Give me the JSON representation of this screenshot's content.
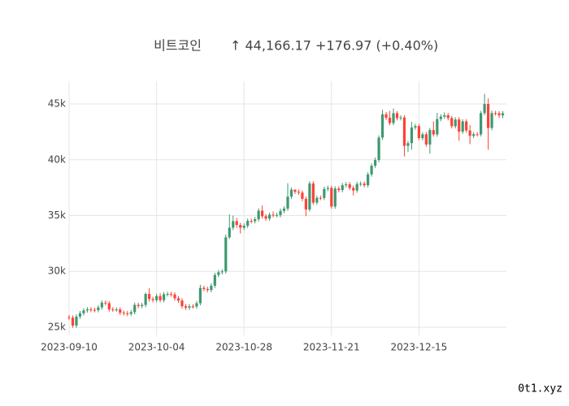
{
  "chart_data": {
    "type": "candlestick",
    "title": "비트코인",
    "price": "↑ 44,166.17",
    "change": "+176.97 (+0.40%)",
    "watermark": "0t1.xyz",
    "increasing_color": "#3d9970",
    "decreasing_color": "#ff4136",
    "grid": true,
    "xlim": [
      "2023-09-10",
      "2024-01-08"
    ],
    "xticks": [
      "2023-09-10",
      "2023-10-04",
      "2023-10-28",
      "2023-11-21",
      "2023-12-15"
    ],
    "ylim": [
      24270,
      47040
    ],
    "yticks": [
      {
        "value": 25000,
        "label": "25k"
      },
      {
        "value": 30000,
        "label": "30k"
      },
      {
        "value": 35000,
        "label": "35k"
      },
      {
        "value": 40000,
        "label": "40k"
      },
      {
        "value": 45000,
        "label": "45k"
      }
    ],
    "x": [
      "2023-09-10",
      "2023-09-11",
      "2023-09-12",
      "2023-09-13",
      "2023-09-14",
      "2023-09-15",
      "2023-09-16",
      "2023-09-17",
      "2023-09-18",
      "2023-09-19",
      "2023-09-20",
      "2023-09-21",
      "2023-09-22",
      "2023-09-23",
      "2023-09-24",
      "2023-09-25",
      "2023-09-26",
      "2023-09-27",
      "2023-09-28",
      "2023-09-29",
      "2023-09-30",
      "2023-10-01",
      "2023-10-02",
      "2023-10-03",
      "2023-10-04",
      "2023-10-05",
      "2023-10-06",
      "2023-10-07",
      "2023-10-08",
      "2023-10-09",
      "2023-10-10",
      "2023-10-11",
      "2023-10-12",
      "2023-10-13",
      "2023-10-14",
      "2023-10-15",
      "2023-10-16",
      "2023-10-17",
      "2023-10-18",
      "2023-10-19",
      "2023-10-20",
      "2023-10-21",
      "2023-10-22",
      "2023-10-23",
      "2023-10-24",
      "2023-10-25",
      "2023-10-26",
      "2023-10-27",
      "2023-10-28",
      "2023-10-29",
      "2023-10-30",
      "2023-10-31",
      "2023-11-01",
      "2023-11-02",
      "2023-11-03",
      "2023-11-04",
      "2023-11-05",
      "2023-11-06",
      "2023-11-07",
      "2023-11-08",
      "2023-11-09",
      "2023-11-10",
      "2023-11-11",
      "2023-11-12",
      "2023-11-13",
      "2023-11-14",
      "2023-11-15",
      "2023-11-16",
      "2023-11-17",
      "2023-11-18",
      "2023-11-19",
      "2023-11-20",
      "2023-11-21",
      "2023-11-22",
      "2023-11-23",
      "2023-11-24",
      "2023-11-25",
      "2023-11-26",
      "2023-11-27",
      "2023-11-28",
      "2023-11-29",
      "2023-11-30",
      "2023-12-01",
      "2023-12-02",
      "2023-12-03",
      "2023-12-04",
      "2023-12-05",
      "2023-12-06",
      "2023-12-07",
      "2023-12-08",
      "2023-12-09",
      "2023-12-10",
      "2023-12-11",
      "2023-12-12",
      "2023-12-13",
      "2023-12-14",
      "2023-12-15",
      "2023-12-16",
      "2023-12-17",
      "2023-12-18",
      "2023-12-19",
      "2023-12-20",
      "2023-12-21",
      "2023-12-22",
      "2023-12-23",
      "2023-12-24",
      "2023-12-25",
      "2023-12-26",
      "2023-12-27",
      "2023-12-28",
      "2023-12-29",
      "2023-12-30",
      "2023-12-31",
      "2024-01-01",
      "2024-01-02",
      "2024-01-03",
      "2024-01-04",
      "2024-01-05",
      "2024-01-06",
      "2024-01-07"
    ],
    "open": [
      25900,
      25850,
      25150,
      25950,
      26250,
      26500,
      26600,
      26550,
      26530,
      26780,
      27200,
      27150,
      26600,
      26580,
      26590,
      26300,
      26250,
      26200,
      26350,
      27000,
      26900,
      27000,
      27980,
      27530,
      27430,
      27790,
      27420,
      27950,
      27970,
      27930,
      27590,
      27390,
      26880,
      26750,
      26870,
      26860,
      27150,
      28520,
      28420,
      28330,
      28720,
      29680,
      29920,
      30000,
      33050,
      33920,
      34500,
      34160,
      33910,
      34090,
      34530,
      34500,
      34670,
      35440,
      34940,
      34730,
      35080,
      35050,
      35050,
      35420,
      35630,
      36700,
      37320,
      37140,
      37060,
      36500,
      35550,
      37880,
      36160,
      36590,
      36580,
      37390,
      37480,
      35810,
      37420,
      37290,
      37720,
      37800,
      37480,
      37250,
      37830,
      37860,
      37720,
      38690,
      39470,
      39980,
      41990,
      44080,
      43770,
      43290,
      44170,
      43730,
      43790,
      41250,
      41490,
      42890,
      43020,
      41940,
      42280,
      41370,
      42660,
      42270,
      43650,
      43870,
      43990,
      43740,
      43010,
      43610,
      42520,
      43440,
      42630,
      42140,
      42290,
      42280,
      44180,
      45000,
      42850,
      44180,
      44160,
      43989.2
    ],
    "high": [
      26100,
      26050,
      26150,
      26450,
      26700,
      26800,
      26800,
      26750,
      26980,
      27400,
      27400,
      27350,
      26800,
      26790,
      26790,
      26500,
      26450,
      26550,
      27200,
      27200,
      27200,
      28100,
      28500,
      27730,
      27990,
      28050,
      28150,
      28170,
      28170,
      28130,
      27790,
      27590,
      27080,
      27070,
      27070,
      27350,
      28800,
      28720,
      28620,
      28920,
      29880,
      30120,
      30200,
      33300,
      35100,
      35000,
      34800,
      34360,
      34290,
      34730,
      34730,
      34870,
      35640,
      35900,
      35140,
      35280,
      35380,
      35250,
      35620,
      35830,
      37900,
      37520,
      37340,
      37340,
      37260,
      36700,
      38080,
      38080,
      36790,
      36790,
      37590,
      37680,
      37680,
      37620,
      37620,
      37920,
      38000,
      38000,
      37680,
      38030,
      38060,
      38060,
      38890,
      39670,
      40200,
      42190,
      44480,
      44280,
      44380,
      44600,
      44370,
      43990,
      43990,
      41690,
      43400,
      43220,
      43220,
      42480,
      42480,
      42860,
      43450,
      44200,
      44070,
      44250,
      44190,
      43940,
      43810,
      43810,
      43640,
      43640,
      43100,
      42490,
      42490,
      44380,
      45900,
      45500,
      44400,
      44380,
      44360,
      44366
    ],
    "low": [
      25650,
      24950,
      24950,
      25750,
      26050,
      26300,
      26350,
      26330,
      26330,
      26580,
      26950,
      26400,
      26380,
      26380,
      26100,
      26050,
      26000,
      26000,
      26150,
      26700,
      26700,
      26800,
      27300,
      27230,
      27230,
      27230,
      27220,
      27750,
      27730,
      27390,
      27190,
      26680,
      26550,
      26550,
      26660,
      26660,
      26950,
      28220,
      28130,
      28130,
      28520,
      29480,
      29720,
      29800,
      32900,
      33700,
      33900,
      33400,
      33710,
      33890,
      34300,
      34300,
      34470,
      34740,
      34530,
      34530,
      34850,
      34850,
      34850,
      35220,
      35430,
      36500,
      36940,
      36860,
      36300,
      34950,
      35350,
      35960,
      35960,
      36380,
      36380,
      37190,
      35610,
      35610,
      37090,
      37090,
      37520,
      37280,
      36800,
      37050,
      37630,
      37520,
      37520,
      38490,
      39270,
      39780,
      41790,
      43570,
      43090,
      43090,
      43530,
      43530,
      40300,
      40700,
      40900,
      42690,
      41740,
      41740,
      41170,
      40550,
      42070,
      42070,
      43450,
      43670,
      43540,
      42810,
      42810,
      41700,
      42320,
      42430,
      41400,
      41940,
      42080,
      42080,
      44000,
      40900,
      42650,
      43960,
      43750,
      43750
    ],
    "close": [
      25850,
      25150,
      25950,
      26250,
      26500,
      26600,
      26550,
      26530,
      26780,
      27200,
      27150,
      26600,
      26580,
      26590,
      26300,
      26250,
      26200,
      26350,
      27000,
      26900,
      27000,
      27980,
      27530,
      27430,
      27790,
      27420,
      27950,
      27970,
      27930,
      27590,
      27390,
      26880,
      26750,
      26870,
      26860,
      27150,
      28520,
      28420,
      28330,
      28720,
      29680,
      29920,
      30000,
      33050,
      33920,
      34500,
      34160,
      33910,
      34090,
      34530,
      34500,
      34670,
      35440,
      34940,
      34730,
      35080,
      35050,
      35050,
      35420,
      35630,
      36700,
      37320,
      37140,
      37060,
      36500,
      35550,
      37880,
      36160,
      36590,
      36580,
      37390,
      37480,
      35810,
      37420,
      37290,
      37720,
      37800,
      37480,
      37250,
      37830,
      37860,
      37720,
      38690,
      39470,
      39980,
      41990,
      44080,
      43770,
      43290,
      44170,
      43730,
      43790,
      41250,
      41490,
      42890,
      43020,
      41940,
      42280,
      41370,
      42660,
      42270,
      43650,
      43870,
      43990,
      43740,
      43010,
      43610,
      42520,
      43440,
      42630,
      42140,
      42290,
      42280,
      44180,
      45000,
      42850,
      44180,
      44160,
      43989.2,
      44166.17
    ]
  }
}
